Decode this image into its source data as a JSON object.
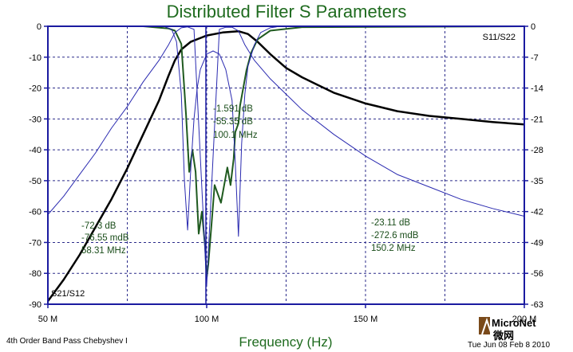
{
  "chart_data": {
    "type": "line",
    "title": "Distributed Filter S Parameters",
    "xlabel": "Frequency (Hz)",
    "ylabel": "",
    "xlim": [
      50,
      200
    ],
    "ylim_left": [
      -90,
      0
    ],
    "ylim_right": [
      -63,
      0
    ],
    "x_ticks": [
      {
        "value": 50,
        "label": "50 M"
      },
      {
        "value": 100,
        "label": "100 M"
      },
      {
        "value": 150,
        "label": "150 M"
      },
      {
        "value": 200,
        "label": "200 M"
      }
    ],
    "y_ticks_left": [
      {
        "value": 0,
        "label": "0"
      },
      {
        "value": -10,
        "label": "-10"
      },
      {
        "value": -20,
        "label": "-20"
      },
      {
        "value": -30,
        "label": "-30"
      },
      {
        "value": -40,
        "label": "-40"
      },
      {
        "value": -50,
        "label": "-50"
      },
      {
        "value": -60,
        "label": "-60"
      },
      {
        "value": -70,
        "label": "-70"
      },
      {
        "value": -80,
        "label": "-80"
      },
      {
        "value": -90,
        "label": "-90"
      }
    ],
    "y_ticks_right": [
      {
        "value": 0,
        "label": "0"
      },
      {
        "value": -7,
        "label": "-7"
      },
      {
        "value": -14,
        "label": "-14"
      },
      {
        "value": -21,
        "label": "-21"
      },
      {
        "value": -28,
        "label": "-28"
      },
      {
        "value": -35,
        "label": "-35"
      },
      {
        "value": -42,
        "label": "-42"
      },
      {
        "value": -49,
        "label": "-49"
      },
      {
        "value": -56,
        "label": "-56"
      },
      {
        "value": -63,
        "label": "-63"
      }
    ],
    "grid": true,
    "corner_labels": {
      "bottom_left": "S21/S12",
      "top_right": "S11/S22"
    },
    "series": [
      {
        "color": "#000000",
        "axis": "left",
        "points": [
          [
            50,
            -89
          ],
          [
            55,
            -82
          ],
          [
            60,
            -74
          ],
          [
            65,
            -65
          ],
          [
            70,
            -56
          ],
          [
            75,
            -46
          ],
          [
            80,
            -35
          ],
          [
            85,
            -24
          ],
          [
            88,
            -16
          ],
          [
            90,
            -11
          ],
          [
            92,
            -7.5
          ],
          [
            95,
            -5
          ],
          [
            100,
            -3
          ],
          [
            105,
            -2
          ],
          [
            110,
            -1.6
          ],
          [
            113,
            -2.5
          ],
          [
            116,
            -5
          ],
          [
            120,
            -9
          ],
          [
            125,
            -13.5
          ],
          [
            130,
            -16.5
          ],
          [
            135,
            -19
          ],
          [
            140,
            -21.5
          ],
          [
            150,
            -25
          ],
          [
            160,
            -27.5
          ],
          [
            170,
            -29
          ],
          [
            180,
            -30
          ],
          [
            190,
            -31
          ],
          [
            200,
            -31.8
          ]
        ]
      },
      {
        "color": "#1f5a1f",
        "axis": "right",
        "points": [
          [
            50,
            0
          ],
          [
            80,
            0
          ],
          [
            88,
            -0.5
          ],
          [
            90,
            -1
          ],
          [
            92,
            -4
          ],
          [
            93.5,
            -20
          ],
          [
            94.5,
            -33
          ],
          [
            95.5,
            -28
          ],
          [
            96.5,
            -33
          ],
          [
            97.5,
            -47
          ],
          [
            98.5,
            -42
          ],
          [
            99.5,
            -50
          ],
          [
            100,
            -57
          ],
          [
            100.5,
            -54
          ],
          [
            101.5,
            -45
          ],
          [
            102.5,
            -36
          ],
          [
            103.5,
            -38
          ],
          [
            104.5,
            -40
          ],
          [
            105.5,
            -36
          ],
          [
            106.5,
            -32
          ],
          [
            107.5,
            -36
          ],
          [
            108.5,
            -30
          ],
          [
            109,
            -24
          ],
          [
            110,
            -22
          ],
          [
            110.5,
            -18
          ],
          [
            111.5,
            -14
          ],
          [
            112.5,
            -10
          ],
          [
            114,
            -6
          ],
          [
            116,
            -3
          ],
          [
            120,
            -1
          ],
          [
            130,
            -0.2
          ],
          [
            200,
            0
          ]
        ]
      },
      {
        "color": "#2a2ab0",
        "axis": "left",
        "points": [
          [
            50,
            -61
          ],
          [
            55,
            -55
          ],
          [
            60,
            -48
          ],
          [
            65,
            -41
          ],
          [
            70,
            -33
          ],
          [
            75,
            -26
          ],
          [
            80,
            -18
          ],
          [
            85,
            -11
          ],
          [
            88,
            -6
          ],
          [
            90,
            -2
          ],
          [
            92,
            -0.5
          ],
          [
            94,
            -0.2
          ],
          [
            96,
            -1
          ],
          [
            100,
            -84
          ],
          [
            104,
            -1
          ],
          [
            106,
            -0.3
          ],
          [
            108,
            -0.3
          ],
          [
            110,
            -1.5
          ],
          [
            112,
            -6
          ],
          [
            115,
            -11
          ],
          [
            120,
            -17
          ],
          [
            130,
            -27
          ],
          [
            140,
            -35
          ],
          [
            150,
            -42
          ],
          [
            160,
            -48
          ],
          [
            170,
            -52
          ],
          [
            180,
            -56
          ],
          [
            190,
            -59
          ],
          [
            200,
            -61.5
          ]
        ]
      },
      {
        "color": "#2a2ab0",
        "axis": "left",
        "points": [
          [
            87,
            -0.2
          ],
          [
            89,
            -1
          ],
          [
            90.5,
            -5
          ],
          [
            92,
            -22
          ],
          [
            93,
            -50
          ],
          [
            94,
            -66
          ],
          [
            95,
            -46
          ],
          [
            96,
            -30
          ],
          [
            97,
            -20
          ],
          [
            98,
            -14
          ],
          [
            100,
            -9
          ],
          [
            102,
            -8
          ],
          [
            104,
            -9
          ],
          [
            106,
            -14
          ],
          [
            108,
            -24
          ],
          [
            109,
            -44
          ],
          [
            110,
            -68
          ],
          [
            111,
            -38
          ],
          [
            112,
            -22
          ],
          [
            113,
            -13
          ],
          [
            115,
            -6
          ],
          [
            117,
            -2
          ],
          [
            120,
            -0.5
          ],
          [
            122,
            -0.2
          ]
        ]
      }
    ],
    "annotations": [
      {
        "x": 100.1,
        "lines": [
          "-1.591 dB",
          "-55.35 dB",
          "100.1 MHz"
        ]
      },
      {
        "x": 58.31,
        "lines": [
          "-72.3 dB",
          "-76.55 mdB",
          "58.31 MHz"
        ]
      },
      {
        "x": 150.2,
        "lines": [
          "-23.11 dB",
          "-272.6 mdB",
          "150.2 MHz"
        ]
      }
    ]
  },
  "footer": {
    "left": "4th Order Band Pass Chebyshev I",
    "right": "Tue Jun 08 Feb 8 2010"
  },
  "logo": {
    "text": "MicroNet",
    "subtext": "微网"
  },
  "colors": {
    "axis_blue": "#1a1aa0",
    "title_green": "#1f6b1f",
    "grid": "#2b2b8a"
  }
}
